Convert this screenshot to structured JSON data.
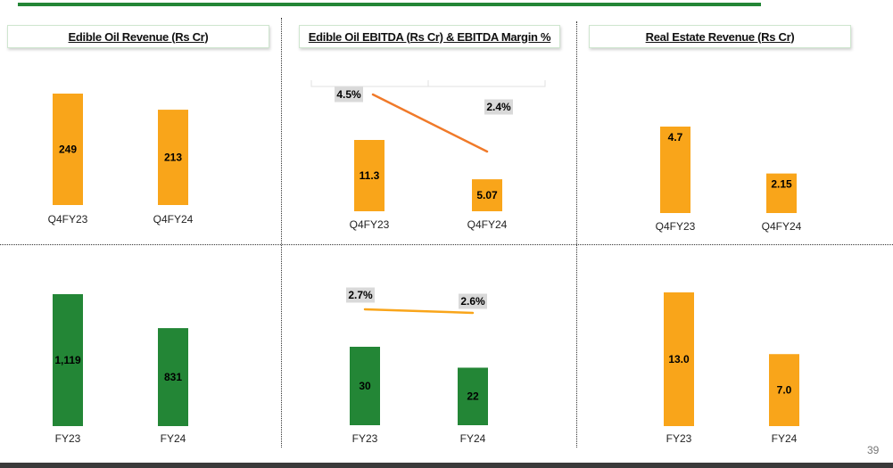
{
  "colors": {
    "orange": "#F9A51A",
    "green": "#238636",
    "line_orange": "#F07A2A",
    "pct_bg": "#D9D9D9"
  },
  "titles": {
    "edible_oil_revenue": "Edible Oil Revenue (Rs Cr)",
    "edible_oil_ebitda": "Edible Oil EBITDA (Rs Cr) & EBITDA Margin %",
    "real_estate_revenue": "Real Estate Revenue (Rs Cr)"
  },
  "page_number": "39",
  "chart_data": [
    {
      "id": "eo-rev-q",
      "type": "bar",
      "title": "Edible Oil Revenue (Rs Cr)",
      "period": "quarterly",
      "categories": [
        "Q4FY23",
        "Q4FY24"
      ],
      "values": [
        249,
        213
      ],
      "labels": [
        "249",
        "213"
      ],
      "color": "orange",
      "ylim": [
        0,
        260
      ]
    },
    {
      "id": "eo-ebitda-q",
      "type": "bar",
      "title": "Edible Oil EBITDA (Rs Cr) & EBITDA Margin %",
      "period": "quarterly",
      "categories": [
        "Q4FY23",
        "Q4FY24"
      ],
      "values": [
        11.3,
        5.07
      ],
      "labels": [
        "11.3",
        "5.07"
      ],
      "color": "orange",
      "ylim": [
        0,
        12
      ],
      "line_series": {
        "name": "EBITDA Margin %",
        "values": [
          4.5,
          2.4
        ],
        "labels": [
          "4.5%",
          "2.4%"
        ]
      }
    },
    {
      "id": "re-rev-q",
      "type": "bar",
      "title": "Real Estate Revenue (Rs Cr)",
      "period": "quarterly",
      "categories": [
        "Q4FY23",
        "Q4FY24"
      ],
      "values": [
        4.7,
        2.15
      ],
      "labels": [
        "4.7",
        "2.15"
      ],
      "color": "orange",
      "ylim": [
        0,
        5
      ]
    },
    {
      "id": "eo-rev-fy",
      "type": "bar",
      "title": "Edible Oil Revenue (Rs Cr)",
      "period": "annual",
      "categories": [
        "FY23",
        "FY24"
      ],
      "values": [
        1119,
        831
      ],
      "labels": [
        "1,119",
        "831"
      ],
      "color": "green",
      "ylim": [
        0,
        1150
      ]
    },
    {
      "id": "eo-ebitda-fy",
      "type": "bar",
      "title": "Edible Oil EBITDA (Rs Cr) & EBITDA Margin %",
      "period": "annual",
      "categories": [
        "FY23",
        "FY24"
      ],
      "values": [
        30,
        22
      ],
      "labels": [
        "30",
        "22"
      ],
      "color": "green",
      "ylim": [
        0,
        30
      ],
      "line_series": {
        "name": "EBITDA Margin %",
        "values": [
          2.7,
          2.6
        ],
        "labels": [
          "2.7%",
          "2.6%"
        ]
      }
    },
    {
      "id": "re-rev-fy",
      "type": "bar",
      "title": "Real Estate Revenue (Rs Cr)",
      "period": "annual",
      "categories": [
        "FY23",
        "FY24"
      ],
      "values": [
        13.0,
        7.0
      ],
      "labels": [
        "13.0",
        "7.0"
      ],
      "color": "orange",
      "ylim": [
        0,
        13.2
      ]
    }
  ]
}
